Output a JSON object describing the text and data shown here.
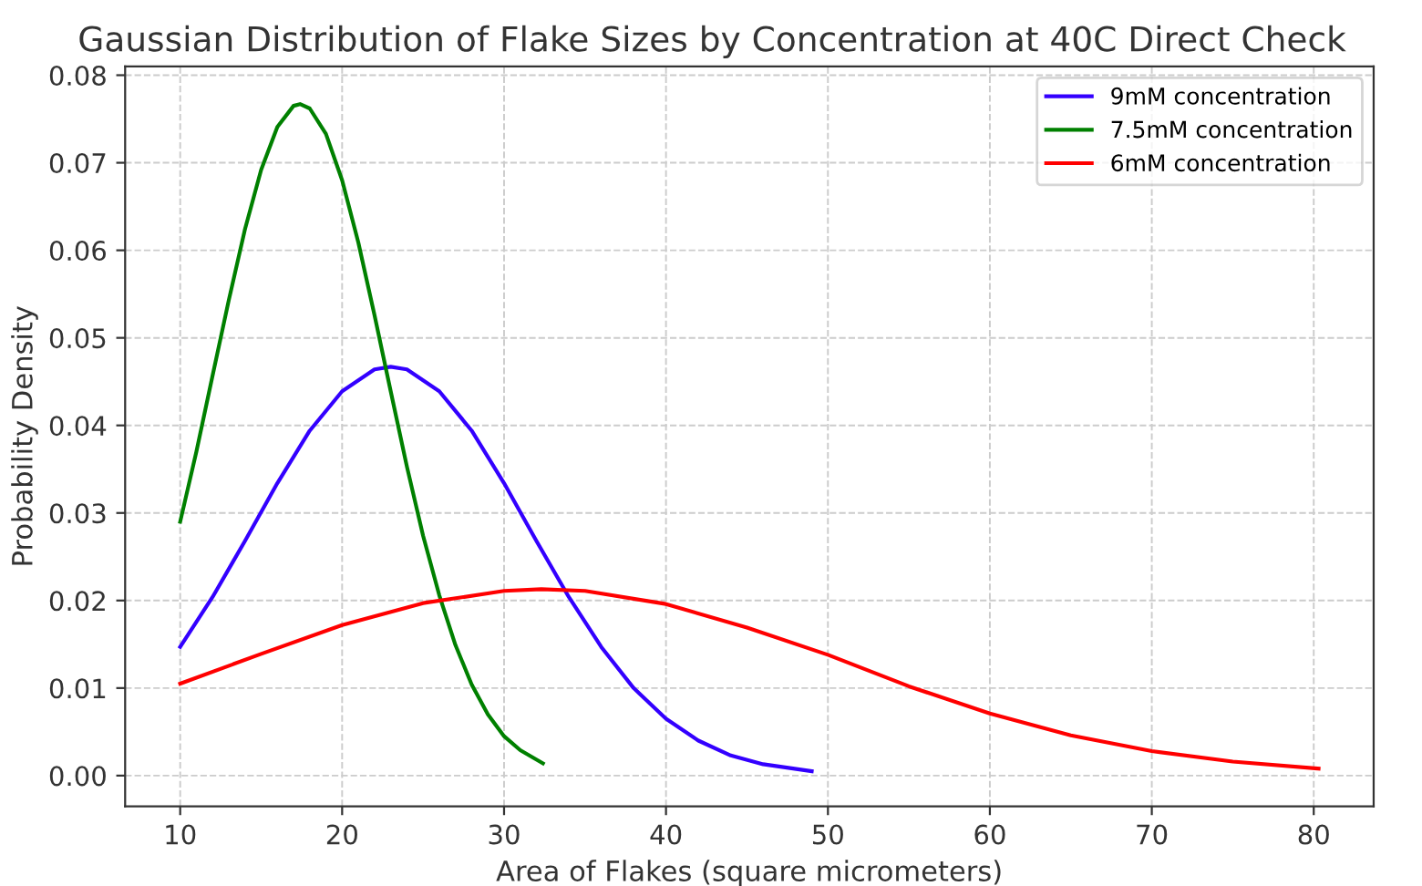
{
  "chart_data": {
    "type": "line",
    "title": "Gaussian Distribution of Flake Sizes by Concentration at 40C Direct Check",
    "xlabel": "Area of Flakes (square micrometers)",
    "ylabel": "Probability Density",
    "xlim": [
      6.6,
      83.7
    ],
    "ylim": [
      -0.0035,
      0.081
    ],
    "xticks": [
      10,
      20,
      30,
      40,
      50,
      60,
      70,
      80
    ],
    "yticks": [
      {
        "value": 0,
        "label": "0.00"
      },
      {
        "value": 0.01,
        "label": "0.01"
      },
      {
        "value": 0.02,
        "label": "0.02"
      },
      {
        "value": 0.03,
        "label": "0.03"
      },
      {
        "value": 0.04,
        "label": "0.04"
      },
      {
        "value": 0.05,
        "label": "0.05"
      },
      {
        "value": 0.06,
        "label": "0.06"
      },
      {
        "value": 0.07,
        "label": "0.07"
      },
      {
        "value": 0.08,
        "label": "0.08"
      }
    ],
    "grid": true,
    "legend": "top right",
    "marker": "none",
    "line_style": "solid",
    "series": [
      {
        "name": "9mM concentration",
        "color": "#3300ff",
        "x": [
          10,
          12,
          14,
          16,
          18,
          20,
          22,
          23,
          24,
          26,
          28,
          30,
          32,
          34,
          36,
          38,
          40,
          42,
          44,
          46,
          49
        ],
        "values": [
          0.0147,
          0.0204,
          0.0268,
          0.0334,
          0.0394,
          0.0439,
          0.0464,
          0.0467,
          0.0464,
          0.0439,
          0.0394,
          0.0334,
          0.0268,
          0.0204,
          0.0147,
          0.01,
          0.0065,
          0.004,
          0.0023,
          0.0013,
          0.0005
        ]
      },
      {
        "name": "7.5mM concentration",
        "color": "#008000",
        "x": [
          10,
          11,
          12,
          13,
          14,
          15,
          16,
          17,
          17.4,
          18,
          19,
          20,
          21,
          22,
          23,
          24,
          25,
          26,
          27,
          28,
          29,
          30,
          31,
          32.4
        ],
        "values": [
          0.029,
          0.037,
          0.0457,
          0.0543,
          0.0624,
          0.0692,
          0.0741,
          0.0765,
          0.0767,
          0.0762,
          0.0733,
          0.068,
          0.0609,
          0.0526,
          0.0439,
          0.0353,
          0.0274,
          0.0206,
          0.0149,
          0.0104,
          0.007,
          0.0045,
          0.0029,
          0.0014
        ]
      },
      {
        "name": "6mM concentration",
        "color": "#ff0000",
        "x": [
          10,
          15,
          20,
          25,
          30,
          32.3,
          35,
          40,
          45,
          50,
          55,
          60,
          65,
          70,
          75,
          80.3
        ],
        "values": [
          0.0105,
          0.0139,
          0.0172,
          0.0197,
          0.0211,
          0.0213,
          0.0211,
          0.0196,
          0.0169,
          0.0138,
          0.0102,
          0.0071,
          0.0046,
          0.0028,
          0.0016,
          0.0008
        ]
      }
    ]
  }
}
